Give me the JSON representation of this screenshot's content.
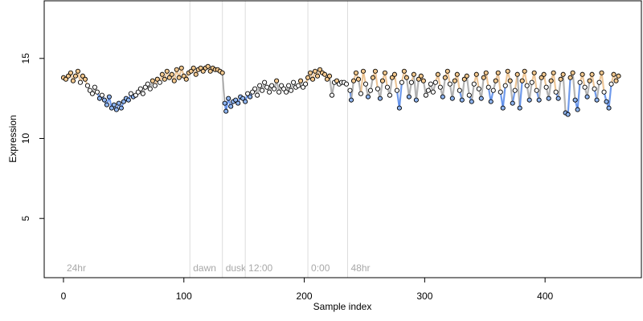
{
  "chart_data": {
    "type": "scatter",
    "xlabel": "Sample index",
    "ylabel": "Expression",
    "xlim": [
      -16,
      480
    ],
    "ylim": [
      1.3,
      18.6
    ],
    "x_ticks": [
      0,
      100,
      200,
      300,
      400
    ],
    "y_ticks": [
      5,
      10,
      15
    ],
    "grid": false,
    "phase_markers": [
      {
        "x": 0,
        "label": "24hr",
        "line": false
      },
      {
        "x": 105,
        "label": "dawn",
        "line": true
      },
      {
        "x": 132,
        "label": "dusk",
        "line": true
      },
      {
        "x": 151,
        "label": "12:00",
        "line": true
      },
      {
        "x": 203,
        "label": "0:00",
        "line": true
      },
      {
        "x": 236,
        "label": "48hr",
        "line": true
      }
    ],
    "colors": {
      "high": "#f4c98f",
      "mid": "#ffffff",
      "low": "#8fb5f0",
      "trend_high": "#e8b476",
      "trend_low": "#3f79e6",
      "trend_flat": "#9a9a9a",
      "point_stroke": "#000000",
      "phase_line": "#dcdcdc",
      "phase_text": "#a8a8a8"
    },
    "series": [
      {
        "x": [
          0,
          5,
          10,
          15,
          20,
          25,
          30,
          35,
          40,
          45,
          50,
          55,
          60,
          65,
          70,
          75,
          80,
          85,
          90,
          95,
          100,
          105,
          110,
          115,
          120,
          125,
          130,
          133,
          136,
          140,
          145,
          150,
          155,
          160,
          165,
          170,
          175,
          180,
          185,
          190,
          195,
          200,
          205,
          210,
          215,
          220,
          225,
          230,
          235,
          238,
          242,
          246,
          250,
          254,
          258,
          262,
          266,
          270,
          274,
          278,
          282,
          286,
          290,
          294,
          298,
          302,
          306,
          310,
          314,
          318,
          322,
          326,
          330,
          334,
          338,
          342,
          346,
          350,
          354,
          358,
          362,
          366,
          370,
          374,
          378,
          382,
          386,
          390,
          394,
          398,
          402,
          406,
          410,
          414,
          418,
          422,
          426,
          430,
          434,
          438,
          442,
          446,
          450,
          454,
          458,
          462
        ],
        "y": [
          13.8,
          13.9,
          13.8,
          13.5,
          13.0,
          12.5,
          12.2,
          11.9,
          11.9,
          12.3,
          12.6,
          12.7,
          13.0,
          13.3,
          13.5,
          13.7,
          13.9,
          14.0,
          14.0,
          14.1,
          14.2,
          14.2,
          14.3,
          14.3,
          14.4,
          14.3,
          14.2,
          12.3,
          12.4,
          12.6,
          12.8,
          13.0,
          13.1,
          13.2,
          13.2,
          13.1,
          13.1,
          13.2,
          13.2,
          13.2,
          13.2,
          13.4,
          13.8,
          14.0,
          13.9,
          13.6,
          13.5,
          13.5,
          13.5,
          12.5,
          13.5,
          14.0,
          13.0,
          13.8,
          12.6,
          14.0,
          13.0,
          14.2,
          12.7,
          13.9,
          12.5,
          13.7,
          13.0,
          14.2,
          12.4,
          13.8,
          13.0,
          14.0,
          12.8,
          13.6,
          12.6,
          14.0,
          12.8,
          13.9,
          12.3,
          14.1,
          12.5,
          13.6,
          12.1,
          14.0,
          12.6,
          13.9,
          12.2,
          14.2,
          12.5,
          13.8,
          12.0,
          14.0,
          12.6,
          13.7,
          12.5,
          14.0,
          12.6,
          13.8,
          11.6,
          14.1,
          12.6,
          14.0,
          12.8,
          13.8,
          12.2,
          14.0,
          12.5,
          13.9,
          12.3,
          13.8
        ]
      }
    ],
    "series_points": [
      [
        0,
        13.8
      ],
      [
        2,
        13.7
      ],
      [
        4,
        13.9
      ],
      [
        6,
        14.1
      ],
      [
        8,
        13.6
      ],
      [
        10,
        13.9
      ],
      [
        12,
        14.2
      ],
      [
        14,
        13.5
      ],
      [
        16,
        13.9
      ],
      [
        18,
        13.7
      ],
      [
        20,
        13.3
      ],
      [
        22,
        13.0
      ],
      [
        24,
        12.8
      ],
      [
        26,
        13.2
      ],
      [
        28,
        12.9
      ],
      [
        30,
        12.5
      ],
      [
        32,
        12.7
      ],
      [
        34,
        12.4
      ],
      [
        36,
        12.1
      ],
      [
        38,
        12.6
      ],
      [
        40,
        11.9
      ],
      [
        42,
        12.1
      ],
      [
        44,
        11.8
      ],
      [
        46,
        12.2
      ],
      [
        48,
        11.9
      ],
      [
        50,
        12.3
      ],
      [
        52,
        12.5
      ],
      [
        54,
        12.4
      ],
      [
        56,
        12.8
      ],
      [
        58,
        12.6
      ],
      [
        60,
        12.7
      ],
      [
        62,
        12.9
      ],
      [
        64,
        13.1
      ],
      [
        66,
        12.8
      ],
      [
        68,
        13.2
      ],
      [
        70,
        13.4
      ],
      [
        72,
        13.1
      ],
      [
        74,
        13.6
      ],
      [
        76,
        13.3
      ],
      [
        78,
        13.7
      ],
      [
        80,
        13.5
      ],
      [
        82,
        14.0
      ],
      [
        84,
        13.7
      ],
      [
        86,
        14.2
      ],
      [
        88,
        13.8
      ],
      [
        90,
        14.0
      ],
      [
        92,
        13.6
      ],
      [
        94,
        14.3
      ],
      [
        96,
        13.8
      ],
      [
        98,
        14.4
      ],
      [
        100,
        13.9
      ],
      [
        102,
        13.7
      ],
      [
        104,
        14.1
      ],
      [
        106,
        14.2
      ],
      [
        108,
        14.4
      ],
      [
        110,
        14.0
      ],
      [
        112,
        14.3
      ],
      [
        114,
        14.4
      ],
      [
        116,
        14.2
      ],
      [
        118,
        14.4
      ],
      [
        120,
        14.5
      ],
      [
        122,
        14.2
      ],
      [
        124,
        14.4
      ],
      [
        126,
        14.3
      ],
      [
        128,
        14.3
      ],
      [
        130,
        14.2
      ],
      [
        132,
        14.1
      ],
      [
        134,
        12.2
      ],
      [
        135,
        11.7
      ],
      [
        137,
        12.5
      ],
      [
        139,
        12.0
      ],
      [
        141,
        12.3
      ],
      [
        143,
        12.4
      ],
      [
        145,
        12.2
      ],
      [
        147,
        12.6
      ],
      [
        149,
        12.5
      ],
      [
        151,
        12.3
      ],
      [
        153,
        12.8
      ],
      [
        155,
        12.6
      ],
      [
        157,
        12.9
      ],
      [
        159,
        13.1
      ],
      [
        161,
        12.7
      ],
      [
        163,
        13.3
      ],
      [
        165,
        13.0
      ],
      [
        167,
        13.5
      ],
      [
        169,
        13.2
      ],
      [
        171,
        12.9
      ],
      [
        173,
        13.3
      ],
      [
        175,
        13.1
      ],
      [
        177,
        13.6
      ],
      [
        179,
        12.9
      ],
      [
        181,
        13.3
      ],
      [
        183,
        13.1
      ],
      [
        185,
        12.9
      ],
      [
        187,
        13.3
      ],
      [
        189,
        13.0
      ],
      [
        191,
        13.5
      ],
      [
        193,
        13.2
      ],
      [
        195,
        13.3
      ],
      [
        197,
        13.6
      ],
      [
        199,
        13.2
      ],
      [
        201,
        13.4
      ],
      [
        203,
        13.8
      ],
      [
        205,
        14.1
      ],
      [
        207,
        13.7
      ],
      [
        209,
        14.2
      ],
      [
        211,
        13.9
      ],
      [
        213,
        14.3
      ],
      [
        215,
        14.1
      ],
      [
        217,
        14.0
      ],
      [
        219,
        13.7
      ],
      [
        221,
        13.9
      ],
      [
        223,
        12.7
      ],
      [
        225,
        13.5
      ],
      [
        227,
        13.6
      ],
      [
        229,
        13.4
      ],
      [
        231,
        13.5
      ],
      [
        233,
        13.5
      ],
      [
        235,
        13.4
      ],
      [
        238,
        13.0
      ],
      [
        239,
        12.4
      ],
      [
        241,
        13.6
      ],
      [
        243,
        14.1
      ],
      [
        245,
        13.7
      ],
      [
        247,
        12.8
      ],
      [
        249,
        14.2
      ],
      [
        251,
        13.4
      ],
      [
        253,
        12.6
      ],
      [
        255,
        13.0
      ],
      [
        257,
        13.8
      ],
      [
        259,
        14.2
      ],
      [
        261,
        13.1
      ],
      [
        263,
        12.5
      ],
      [
        265,
        13.6
      ],
      [
        267,
        14.1
      ],
      [
        269,
        13.2
      ],
      [
        271,
        12.7
      ],
      [
        273,
        13.8
      ],
      [
        275,
        14.0
      ],
      [
        277,
        13.0
      ],
      [
        279,
        11.9
      ],
      [
        281,
        13.5
      ],
      [
        283,
        14.2
      ],
      [
        285,
        13.8
      ],
      [
        287,
        12.6
      ],
      [
        289,
        13.5
      ],
      [
        291,
        14.0
      ],
      [
        293,
        12.4
      ],
      [
        295,
        13.7
      ],
      [
        297,
        13.9
      ],
      [
        299,
        13.6
      ],
      [
        301,
        12.7
      ],
      [
        303,
        13.0
      ],
      [
        305,
        13.4
      ],
      [
        307,
        12.9
      ],
      [
        309,
        13.5
      ],
      [
        311,
        14.0
      ],
      [
        313,
        13.2
      ],
      [
        315,
        12.6
      ],
      [
        317,
        13.8
      ],
      [
        319,
        14.2
      ],
      [
        321,
        13.4
      ],
      [
        323,
        12.5
      ],
      [
        325,
        13.6
      ],
      [
        327,
        14.0
      ],
      [
        329,
        13.0
      ],
      [
        331,
        12.4
      ],
      [
        333,
        13.7
      ],
      [
        335,
        13.9
      ],
      [
        337,
        12.7
      ],
      [
        339,
        12.3
      ],
      [
        341,
        13.4
      ],
      [
        343,
        14.0
      ],
      [
        345,
        13.1
      ],
      [
        347,
        12.5
      ],
      [
        349,
        13.8
      ],
      [
        351,
        14.1
      ],
      [
        353,
        13.2
      ],
      [
        355,
        12.3
      ],
      [
        357,
        13.0
      ],
      [
        359,
        13.6
      ],
      [
        361,
        14.1
      ],
      [
        363,
        12.9
      ],
      [
        365,
        11.9
      ],
      [
        367,
        13.3
      ],
      [
        369,
        14.2
      ],
      [
        371,
        13.6
      ],
      [
        373,
        12.2
      ],
      [
        375,
        13.0
      ],
      [
        377,
        14.0
      ],
      [
        379,
        11.9
      ],
      [
        381,
        13.6
      ],
      [
        383,
        14.2
      ],
      [
        385,
        13.3
      ],
      [
        387,
        12.4
      ],
      [
        389,
        13.5
      ],
      [
        391,
        14.1
      ],
      [
        393,
        13.0
      ],
      [
        395,
        12.4
      ],
      [
        397,
        13.8
      ],
      [
        399,
        14.0
      ],
      [
        401,
        13.2
      ],
      [
        403,
        12.5
      ],
      [
        405,
        13.6
      ],
      [
        407,
        14.1
      ],
      [
        409,
        12.9
      ],
      [
        411,
        12.5
      ],
      [
        413,
        13.7
      ],
      [
        415,
        14.0
      ],
      [
        417,
        11.6
      ],
      [
        419,
        11.5
      ],
      [
        421,
        13.8
      ],
      [
        423,
        14.1
      ],
      [
        425,
        12.4
      ],
      [
        427,
        11.8
      ],
      [
        429,
        13.5
      ],
      [
        431,
        14.0
      ],
      [
        433,
        13.2
      ],
      [
        435,
        12.6
      ],
      [
        437,
        13.6
      ],
      [
        439,
        14.0
      ],
      [
        441,
        13.1
      ],
      [
        443,
        12.4
      ],
      [
        445,
        13.5
      ],
      [
        447,
        14.1
      ],
      [
        449,
        12.9
      ],
      [
        451,
        12.3
      ],
      [
        453,
        11.9
      ],
      [
        455,
        13.4
      ],
      [
        457,
        14.0
      ],
      [
        459,
        13.6
      ],
      [
        461,
        13.9
      ]
    ]
  }
}
